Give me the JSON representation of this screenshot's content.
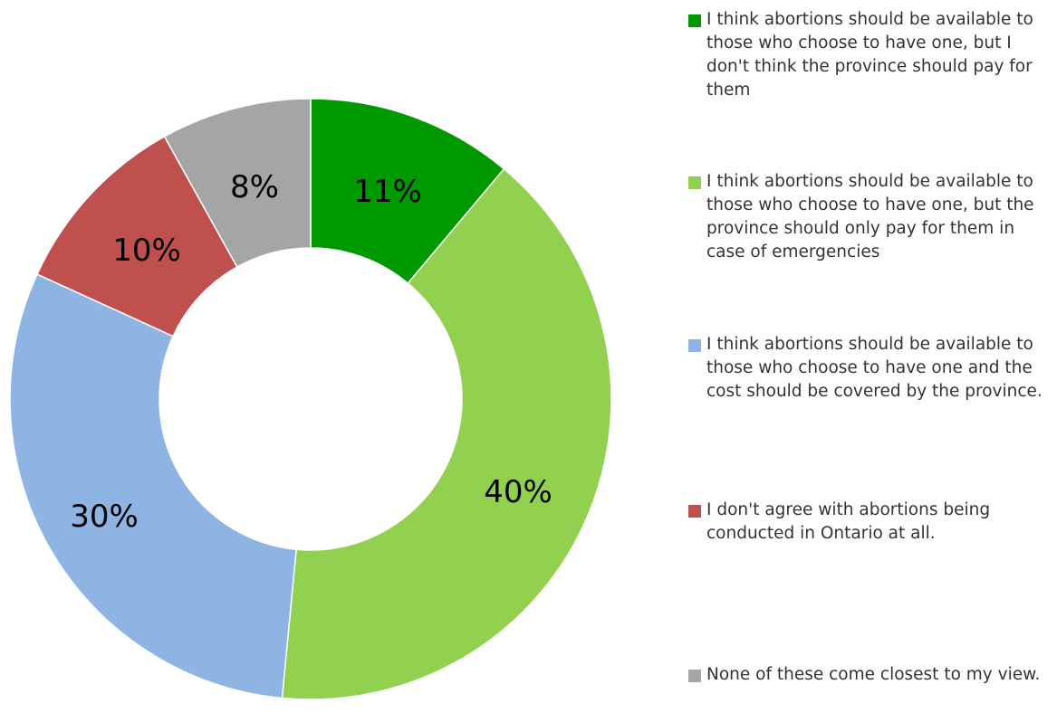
{
  "chart_data": {
    "type": "pie",
    "variant": "donut",
    "title": "",
    "legend_position": "right",
    "slices": [
      {
        "label": "I think abortions should be available to those who choose to have one, but I don't think the province should pay for them",
        "value": 11,
        "display": "11%",
        "color": "#009900"
      },
      {
        "label": "I think abortions should be available to those who choose to have one, but the province should only pay for them in case of emergencies",
        "value": 40,
        "display": "40%",
        "color": "#92D050"
      },
      {
        "label": "I think abortions should be available to those who choose to have one and the cost should be covered by the province.",
        "value": 30,
        "display": "30%",
        "color": "#8DB4E2"
      },
      {
        "label": "I don't agree with abortions being conducted in Ontario at all.",
        "value": 10,
        "display": "10%",
        "color": "#C0504D"
      },
      {
        "label": "None of these come closest to my view.",
        "value": 8,
        "display": "8%",
        "color": "#A5A5A5"
      }
    ]
  }
}
